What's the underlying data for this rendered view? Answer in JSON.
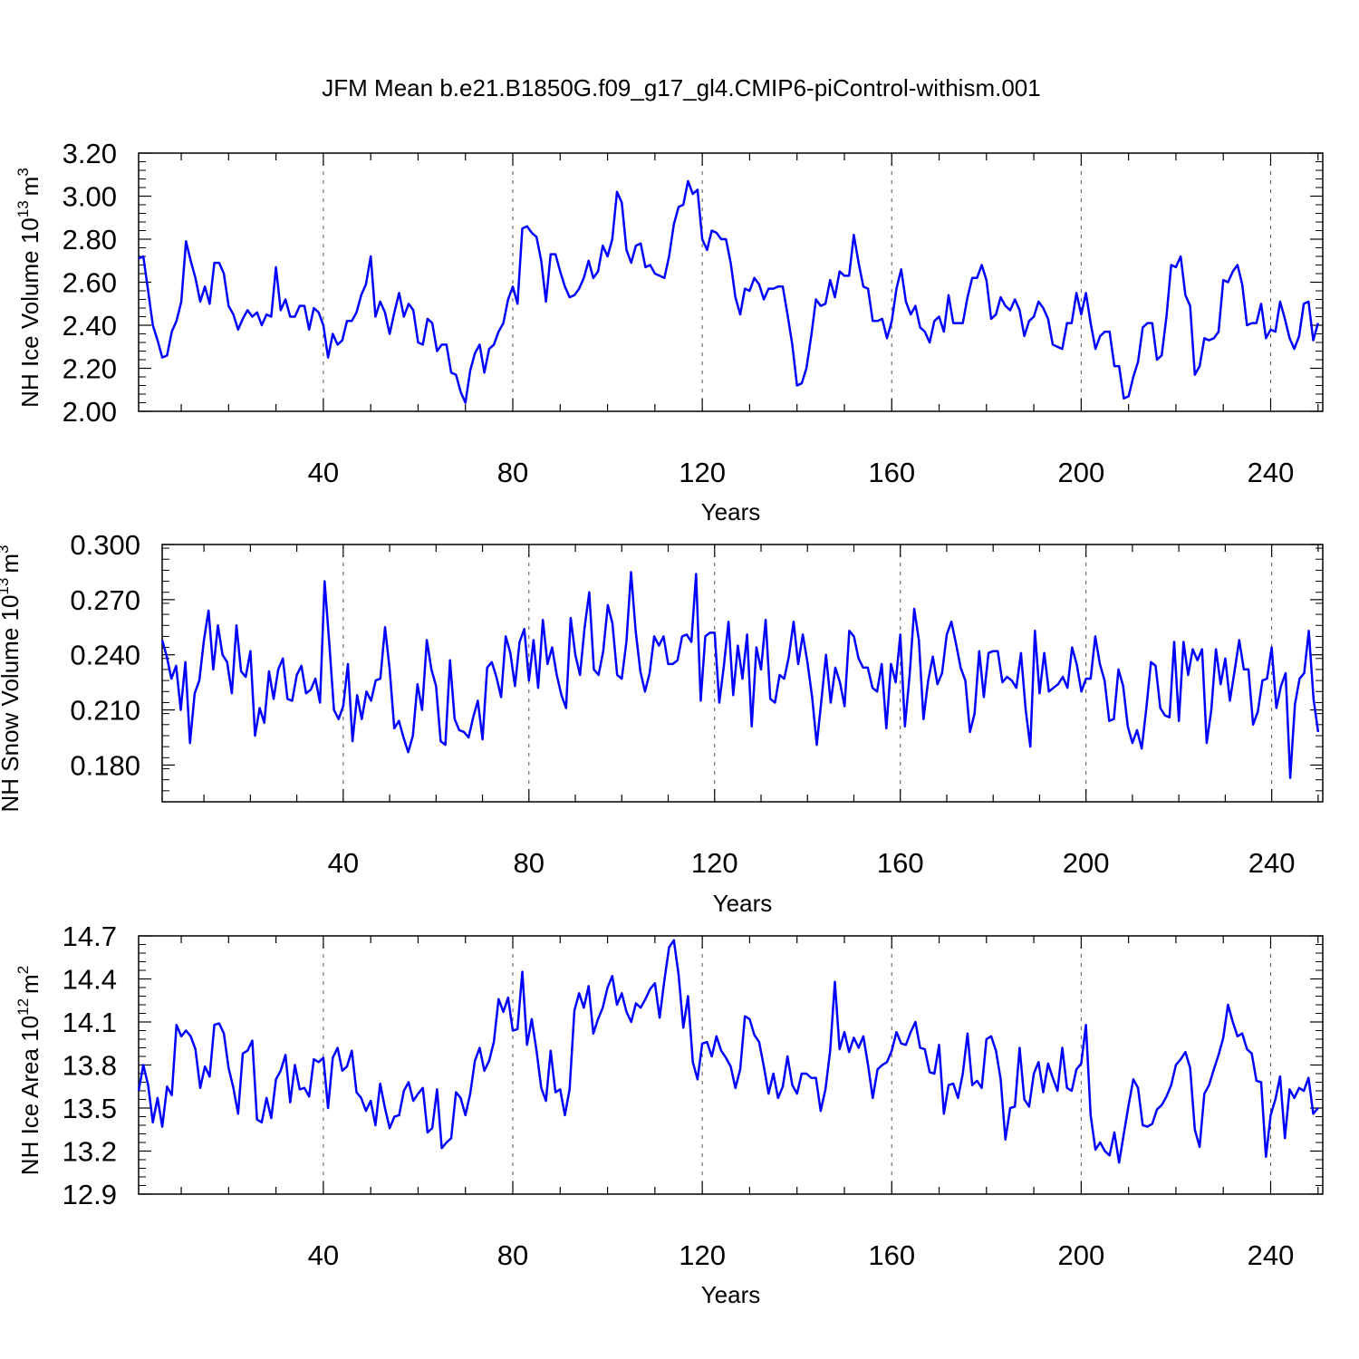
{
  "title": "JFM Mean b.e21.B1850G.f09_g17_gl4.CMIP6-piControl-withism.001",
  "line_color": "#0000ff",
  "chart_data": [
    {
      "type": "line",
      "xlabel": "Years",
      "ylabel": "NH Ice Volume 10",
      "ylabel_exp": "13",
      "ylabel_unit": "m",
      "ylabel_unit_exp": "3",
      "xlim": [
        1,
        251
      ],
      "ylim": [
        2.0,
        3.2
      ],
      "xticks": [
        40,
        80,
        120,
        160,
        200,
        240
      ],
      "yticks": [
        "2.00",
        "2.20",
        "2.40",
        "2.60",
        "2.80",
        "3.00",
        "3.20"
      ],
      "grid": "vertical-dashed",
      "series": [
        {
          "values": [
            2.71,
            2.72,
            2.56,
            2.4,
            2.33,
            2.25,
            2.26,
            2.37,
            2.42,
            2.51,
            2.79,
            2.7,
            2.62,
            2.51,
            2.58,
            2.5,
            2.69,
            2.69,
            2.64,
            2.49,
            2.45,
            2.38,
            2.43,
            2.47,
            2.44,
            2.46,
            2.4,
            2.45,
            2.44,
            2.67,
            2.47,
            2.52,
            2.44,
            2.44,
            2.49,
            2.49,
            2.38,
            2.48,
            2.46,
            2.4,
            2.25,
            2.36,
            2.31,
            2.33,
            2.42,
            2.42,
            2.46,
            2.54,
            2.59,
            2.72,
            2.44,
            2.51,
            2.46,
            2.36,
            2.46,
            2.55,
            2.44,
            2.5,
            2.47,
            2.32,
            2.31,
            2.43,
            2.41,
            2.28,
            2.31,
            2.31,
            2.18,
            2.17,
            2.09,
            2.04,
            2.19,
            2.27,
            2.31,
            2.18,
            2.29,
            2.31,
            2.37,
            2.41,
            2.52,
            2.58,
            2.5,
            2.85,
            2.86,
            2.83,
            2.81,
            2.7,
            2.51,
            2.73,
            2.73,
            2.65,
            2.58,
            2.53,
            2.54,
            2.57,
            2.62,
            2.7,
            2.62,
            2.65,
            2.77,
            2.72,
            2.8,
            3.02,
            2.97,
            2.75,
            2.69,
            2.77,
            2.78,
            2.67,
            2.68,
            2.64,
            2.63,
            2.62,
            2.72,
            2.87,
            2.95,
            2.96,
            3.07,
            3.01,
            3.03,
            2.8,
            2.75,
            2.84,
            2.83,
            2.8,
            2.8,
            2.69,
            2.53,
            2.45,
            2.57,
            2.56,
            2.62,
            2.59,
            2.52,
            2.57,
            2.57,
            2.58,
            2.58,
            2.45,
            2.31,
            2.12,
            2.13,
            2.2,
            2.35,
            2.52,
            2.49,
            2.5,
            2.61,
            2.53,
            2.65,
            2.63,
            2.63,
            2.82,
            2.69,
            2.58,
            2.57,
            2.42,
            2.42,
            2.43,
            2.34,
            2.42,
            2.57,
            2.66,
            2.51,
            2.45,
            2.49,
            2.39,
            2.37,
            2.32,
            2.42,
            2.44,
            2.37,
            2.54,
            2.41,
            2.41,
            2.41,
            2.53,
            2.62,
            2.62,
            2.68,
            2.61,
            2.43,
            2.45,
            2.53,
            2.49,
            2.47,
            2.52,
            2.47,
            2.35,
            2.42,
            2.44,
            2.51,
            2.48,
            2.43,
            2.31,
            2.3,
            2.29,
            2.41,
            2.41,
            2.55,
            2.45,
            2.55,
            2.41,
            2.29,
            2.35,
            2.37,
            2.37,
            2.21,
            2.21,
            2.06,
            2.07,
            2.16,
            2.23,
            2.39,
            2.41,
            2.41,
            2.24,
            2.26,
            2.44,
            2.68,
            2.67,
            2.72,
            2.54,
            2.49,
            2.17,
            2.21,
            2.34,
            2.33,
            2.34,
            2.37,
            2.61,
            2.6,
            2.65,
            2.68,
            2.59,
            2.4,
            2.41,
            2.41,
            2.5,
            2.34,
            2.38,
            2.37,
            2.51,
            2.43,
            2.34,
            2.29,
            2.35,
            2.5,
            2.51,
            2.33,
            2.41
          ]
        }
      ]
    },
    {
      "type": "line",
      "xlabel": "Years",
      "ylabel": "NH Snow Volume 10",
      "ylabel_exp": "13",
      "ylabel_unit": "m",
      "ylabel_unit_exp": "3",
      "xlim": [
        1,
        251
      ],
      "ylim": [
        0.16,
        0.3
      ],
      "xticks": [
        40,
        80,
        120,
        160,
        200,
        240
      ],
      "yticks": [
        "0.180",
        "0.210",
        "0.240",
        "0.270",
        "0.300"
      ],
      "grid": "vertical-dashed",
      "series": [
        {
          "values": [
            0.248,
            0.239,
            0.227,
            0.234,
            0.21,
            0.236,
            0.192,
            0.219,
            0.226,
            0.248,
            0.264,
            0.232,
            0.256,
            0.24,
            0.236,
            0.219,
            0.256,
            0.231,
            0.228,
            0.242,
            0.196,
            0.211,
            0.203,
            0.231,
            0.216,
            0.232,
            0.238,
            0.216,
            0.215,
            0.229,
            0.234,
            0.219,
            0.221,
            0.227,
            0.214,
            0.28,
            0.246,
            0.21,
            0.205,
            0.212,
            0.235,
            0.193,
            0.218,
            0.205,
            0.22,
            0.215,
            0.226,
            0.227,
            0.255,
            0.232,
            0.2,
            0.204,
            0.195,
            0.187,
            0.196,
            0.224,
            0.21,
            0.248,
            0.232,
            0.223,
            0.193,
            0.191,
            0.237,
            0.205,
            0.199,
            0.198,
            0.195,
            0.206,
            0.215,
            0.194,
            0.233,
            0.236,
            0.228,
            0.217,
            0.25,
            0.241,
            0.223,
            0.247,
            0.254,
            0.226,
            0.248,
            0.222,
            0.259,
            0.235,
            0.244,
            0.229,
            0.218,
            0.211,
            0.26,
            0.24,
            0.229,
            0.255,
            0.274,
            0.232,
            0.229,
            0.242,
            0.267,
            0.257,
            0.229,
            0.227,
            0.247,
            0.285,
            0.253,
            0.231,
            0.22,
            0.23,
            0.25,
            0.245,
            0.25,
            0.235,
            0.235,
            0.237,
            0.25,
            0.251,
            0.247,
            0.284,
            0.215,
            0.25,
            0.252,
            0.252,
            0.214,
            0.234,
            0.258,
            0.218,
            0.245,
            0.227,
            0.251,
            0.201,
            0.244,
            0.232,
            0.259,
            0.216,
            0.214,
            0.229,
            0.227,
            0.239,
            0.258,
            0.235,
            0.251,
            0.236,
            0.217,
            0.191,
            0.215,
            0.24,
            0.214,
            0.233,
            0.225,
            0.212,
            0.253,
            0.25,
            0.238,
            0.233,
            0.233,
            0.222,
            0.22,
            0.235,
            0.2,
            0.235,
            0.225,
            0.251,
            0.201,
            0.229,
            0.265,
            0.248,
            0.205,
            0.226,
            0.239,
            0.224,
            0.23,
            0.251,
            0.258,
            0.246,
            0.233,
            0.226,
            0.198,
            0.208,
            0.242,
            0.217,
            0.241,
            0.242,
            0.242,
            0.225,
            0.228,
            0.226,
            0.222,
            0.241,
            0.21,
            0.19,
            0.253,
            0.219,
            0.241,
            0.22,
            0.222,
            0.224,
            0.228,
            0.222,
            0.244,
            0.235,
            0.22,
            0.227,
            0.227,
            0.25,
            0.235,
            0.226,
            0.204,
            0.205,
            0.232,
            0.223,
            0.201,
            0.192,
            0.199,
            0.189,
            0.211,
            0.236,
            0.234,
            0.211,
            0.207,
            0.206,
            0.247,
            0.204,
            0.247,
            0.229,
            0.243,
            0.237,
            0.243,
            0.192,
            0.21,
            0.243,
            0.224,
            0.238,
            0.215,
            0.231,
            0.248,
            0.232,
            0.232,
            0.202,
            0.209,
            0.226,
            0.227,
            0.244,
            0.211,
            0.223,
            0.23,
            0.173,
            0.213,
            0.227,
            0.23,
            0.253,
            0.216,
            0.198
          ]
        }
      ]
    },
    {
      "type": "line",
      "xlabel": "Years",
      "ylabel": "NH Ice Area 10",
      "ylabel_exp": "12",
      "ylabel_unit": "m",
      "ylabel_unit_exp": "2",
      "xlim": [
        1,
        251
      ],
      "ylim": [
        12.9,
        14.7
      ],
      "xticks": [
        40,
        80,
        120,
        160,
        200,
        240
      ],
      "yticks": [
        "12.9",
        "13.2",
        "13.5",
        "13.8",
        "14.1",
        "14.4",
        "14.7"
      ],
      "grid": "vertical-dashed",
      "series": [
        {
          "values": [
            13.62,
            13.8,
            13.66,
            13.4,
            13.57,
            13.37,
            13.65,
            13.59,
            14.08,
            14.0,
            14.04,
            14.0,
            13.91,
            13.64,
            13.79,
            13.72,
            14.08,
            14.09,
            14.02,
            13.78,
            13.64,
            13.46,
            13.88,
            13.9,
            13.97,
            13.42,
            13.4,
            13.57,
            13.43,
            13.7,
            13.76,
            13.87,
            13.54,
            13.8,
            13.63,
            13.64,
            13.58,
            13.84,
            13.82,
            13.85,
            13.5,
            13.85,
            13.92,
            13.76,
            13.79,
            13.9,
            13.61,
            13.57,
            13.48,
            13.55,
            13.38,
            13.67,
            13.5,
            13.36,
            13.44,
            13.45,
            13.62,
            13.68,
            13.55,
            13.6,
            13.64,
            13.33,
            13.36,
            13.63,
            13.22,
            13.26,
            13.29,
            13.61,
            13.57,
            13.45,
            13.6,
            13.83,
            13.92,
            13.76,
            13.83,
            13.96,
            14.26,
            14.17,
            14.27,
            14.04,
            14.05,
            14.45,
            13.94,
            14.12,
            13.9,
            13.64,
            13.55,
            13.9,
            13.61,
            13.63,
            13.45,
            13.63,
            14.18,
            14.3,
            14.2,
            14.35,
            14.02,
            14.12,
            14.2,
            14.34,
            14.42,
            14.22,
            14.3,
            14.17,
            14.1,
            14.23,
            14.2,
            14.26,
            14.33,
            14.37,
            14.13,
            14.39,
            14.62,
            14.67,
            14.43,
            14.06,
            14.28,
            13.82,
            13.7,
            13.95,
            13.96,
            13.86,
            14.0,
            13.9,
            13.85,
            13.79,
            13.64,
            13.77,
            14.14,
            14.12,
            14.01,
            13.96,
            13.79,
            13.6,
            13.74,
            13.57,
            13.65,
            13.86,
            13.66,
            13.6,
            13.74,
            13.74,
            13.71,
            13.71,
            13.48,
            13.63,
            13.9,
            14.38,
            13.91,
            14.03,
            13.89,
            13.99,
            13.92,
            14.0,
            13.8,
            13.57,
            13.77,
            13.8,
            13.82,
            13.9,
            14.03,
            13.95,
            13.94,
            14.03,
            14.1,
            13.92,
            13.91,
            13.75,
            13.74,
            13.94,
            13.46,
            13.66,
            13.67,
            13.57,
            13.74,
            14.02,
            13.66,
            13.69,
            13.64,
            13.98,
            14.0,
            13.9,
            13.7,
            13.28,
            13.5,
            13.51,
            13.92,
            13.56,
            13.51,
            13.74,
            13.82,
            13.61,
            13.81,
            13.71,
            13.62,
            13.92,
            13.64,
            13.62,
            13.77,
            13.81,
            14.08,
            13.45,
            13.21,
            13.26,
            13.2,
            13.17,
            13.33,
            13.12,
            13.32,
            13.52,
            13.7,
            13.64,
            13.38,
            13.37,
            13.39,
            13.49,
            13.52,
            13.58,
            13.66,
            13.8,
            13.84,
            13.89,
            13.78,
            13.35,
            13.23,
            13.6,
            13.66,
            13.77,
            13.87,
            13.99,
            14.22,
            14.1,
            14.0,
            14.02,
            13.91,
            13.88,
            13.69,
            13.68,
            13.16,
            13.45,
            13.56,
            13.72,
            13.29,
            13.63,
            13.57,
            13.64,
            13.62,
            13.71,
            13.46,
            13.5
          ]
        }
      ]
    }
  ]
}
